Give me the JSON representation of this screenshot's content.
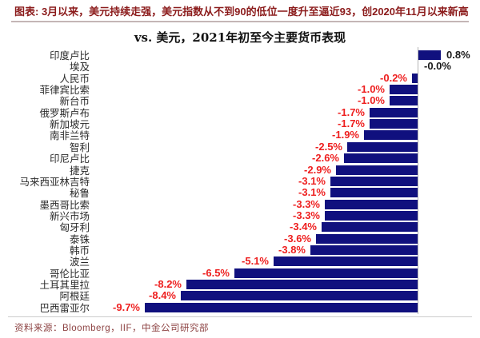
{
  "header": {
    "note": "图表: 3月以来，美元持续走强，美元指数从不到90的低位一度升至逼近93，创2020年11月以来新高"
  },
  "chart_data": {
    "type": "bar",
    "orientation": "horizontal",
    "title": "vs. 美元，2021年初至今主要货币表现",
    "unit": "%",
    "xlim": [
      -10.5,
      1.5
    ],
    "grid": false,
    "legend": "none",
    "bar_color": "#10107e",
    "negative_label_color": "#ee1f1f",
    "positive_label_color": "#1a1a1a",
    "categories": [
      "印度卢比",
      "埃及",
      "人民币",
      "菲律宾比索",
      "新台币",
      "俄罗斯卢布",
      "新加坡元",
      "南非兰特",
      "智利",
      "印尼卢比",
      "捷克",
      "马来西亚林吉特",
      "秘鲁",
      "墨西哥比索",
      "新兴市场",
      "匈牙利",
      "泰铢",
      "韩币",
      "波兰",
      "哥伦比亚",
      "土耳其里拉",
      "阿根廷",
      "巴西雷亚尔"
    ],
    "values": [
      0.8,
      -0.0,
      -0.2,
      -1.0,
      -1.0,
      -1.7,
      -1.7,
      -1.9,
      -2.5,
      -2.6,
      -2.9,
      -3.1,
      -3.1,
      -3.3,
      -3.3,
      -3.4,
      -3.6,
      -3.8,
      -5.1,
      -6.5,
      -8.2,
      -8.4,
      -9.7
    ],
    "value_labels": [
      "0.8%",
      "-0.0%",
      "-0.2%",
      "-1.0%",
      "-1.0%",
      "-1.7%",
      "-1.7%",
      "-1.9%",
      "-2.5%",
      "-2.6%",
      "-2.9%",
      "-3.1%",
      "-3.1%",
      "-3.3%",
      "-3.3%",
      "-3.4%",
      "-3.6%",
      "-3.8%",
      "-5.1%",
      "-6.5%",
      "-8.2%",
      "-8.4%",
      "-9.7%"
    ]
  },
  "footer": {
    "source": "资料来源：Bloomberg，IIF，中金公司研究部"
  }
}
